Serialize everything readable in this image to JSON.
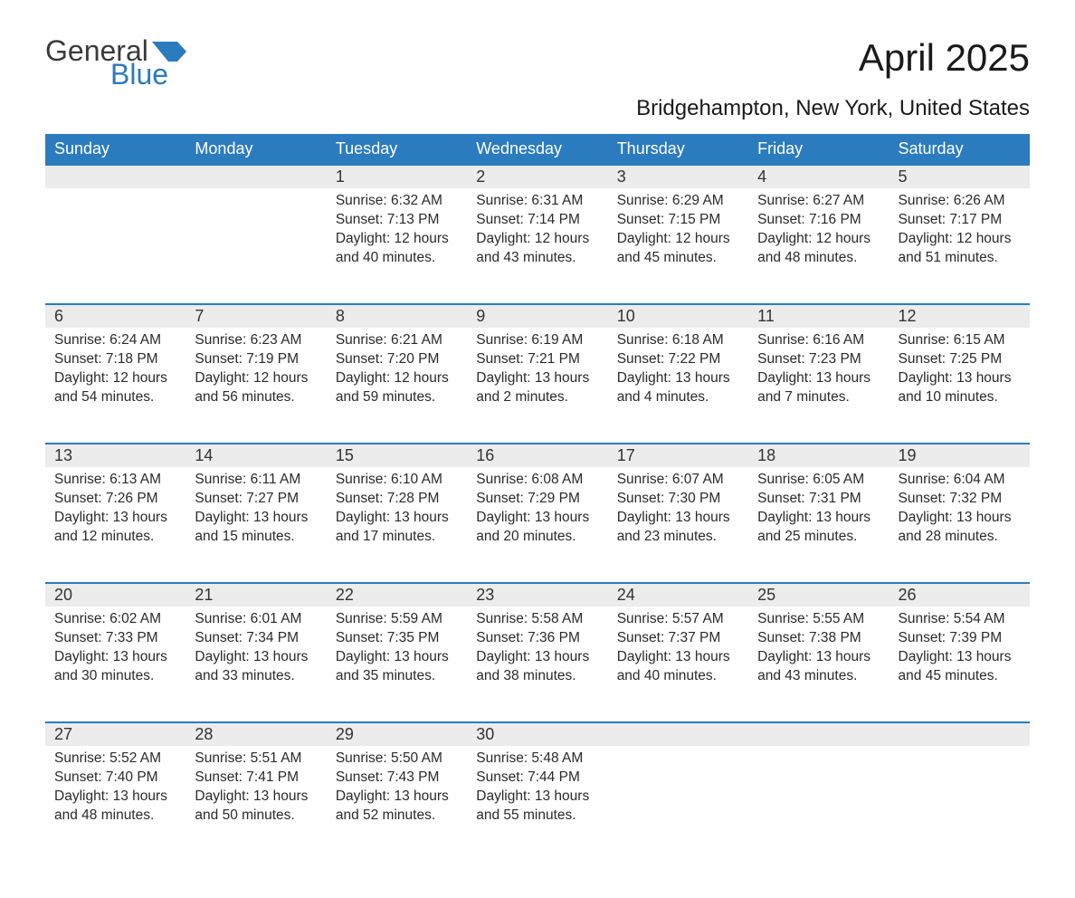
{
  "brand": {
    "general": "General",
    "blue": "Blue",
    "flag_color": "#2b7bbf"
  },
  "title": "April 2025",
  "subtitle": "Bridgehampton, New York, United States",
  "colors": {
    "header_bg": "#2b7bbf",
    "header_text": "#ffffff",
    "daynum_bg": "#ececec",
    "row_divider": "#2b7bbf",
    "text": "#2a2a2a",
    "page_bg": "#ffffff"
  },
  "weekday_labels": [
    "Sunday",
    "Monday",
    "Tuesday",
    "Wednesday",
    "Thursday",
    "Friday",
    "Saturday"
  ],
  "first_weekday_index": 2,
  "days": [
    {
      "n": 1,
      "sunrise": "6:32 AM",
      "sunset": "7:13 PM",
      "daylight": "12 hours and 40 minutes."
    },
    {
      "n": 2,
      "sunrise": "6:31 AM",
      "sunset": "7:14 PM",
      "daylight": "12 hours and 43 minutes."
    },
    {
      "n": 3,
      "sunrise": "6:29 AM",
      "sunset": "7:15 PM",
      "daylight": "12 hours and 45 minutes."
    },
    {
      "n": 4,
      "sunrise": "6:27 AM",
      "sunset": "7:16 PM",
      "daylight": "12 hours and 48 minutes."
    },
    {
      "n": 5,
      "sunrise": "6:26 AM",
      "sunset": "7:17 PM",
      "daylight": "12 hours and 51 minutes."
    },
    {
      "n": 6,
      "sunrise": "6:24 AM",
      "sunset": "7:18 PM",
      "daylight": "12 hours and 54 minutes."
    },
    {
      "n": 7,
      "sunrise": "6:23 AM",
      "sunset": "7:19 PM",
      "daylight": "12 hours and 56 minutes."
    },
    {
      "n": 8,
      "sunrise": "6:21 AM",
      "sunset": "7:20 PM",
      "daylight": "12 hours and 59 minutes."
    },
    {
      "n": 9,
      "sunrise": "6:19 AM",
      "sunset": "7:21 PM",
      "daylight": "13 hours and 2 minutes."
    },
    {
      "n": 10,
      "sunrise": "6:18 AM",
      "sunset": "7:22 PM",
      "daylight": "13 hours and 4 minutes."
    },
    {
      "n": 11,
      "sunrise": "6:16 AM",
      "sunset": "7:23 PM",
      "daylight": "13 hours and 7 minutes."
    },
    {
      "n": 12,
      "sunrise": "6:15 AM",
      "sunset": "7:25 PM",
      "daylight": "13 hours and 10 minutes."
    },
    {
      "n": 13,
      "sunrise": "6:13 AM",
      "sunset": "7:26 PM",
      "daylight": "13 hours and 12 minutes."
    },
    {
      "n": 14,
      "sunrise": "6:11 AM",
      "sunset": "7:27 PM",
      "daylight": "13 hours and 15 minutes."
    },
    {
      "n": 15,
      "sunrise": "6:10 AM",
      "sunset": "7:28 PM",
      "daylight": "13 hours and 17 minutes."
    },
    {
      "n": 16,
      "sunrise": "6:08 AM",
      "sunset": "7:29 PM",
      "daylight": "13 hours and 20 minutes."
    },
    {
      "n": 17,
      "sunrise": "6:07 AM",
      "sunset": "7:30 PM",
      "daylight": "13 hours and 23 minutes."
    },
    {
      "n": 18,
      "sunrise": "6:05 AM",
      "sunset": "7:31 PM",
      "daylight": "13 hours and 25 minutes."
    },
    {
      "n": 19,
      "sunrise": "6:04 AM",
      "sunset": "7:32 PM",
      "daylight": "13 hours and 28 minutes."
    },
    {
      "n": 20,
      "sunrise": "6:02 AM",
      "sunset": "7:33 PM",
      "daylight": "13 hours and 30 minutes."
    },
    {
      "n": 21,
      "sunrise": "6:01 AM",
      "sunset": "7:34 PM",
      "daylight": "13 hours and 33 minutes."
    },
    {
      "n": 22,
      "sunrise": "5:59 AM",
      "sunset": "7:35 PM",
      "daylight": "13 hours and 35 minutes."
    },
    {
      "n": 23,
      "sunrise": "5:58 AM",
      "sunset": "7:36 PM",
      "daylight": "13 hours and 38 minutes."
    },
    {
      "n": 24,
      "sunrise": "5:57 AM",
      "sunset": "7:37 PM",
      "daylight": "13 hours and 40 minutes."
    },
    {
      "n": 25,
      "sunrise": "5:55 AM",
      "sunset": "7:38 PM",
      "daylight": "13 hours and 43 minutes."
    },
    {
      "n": 26,
      "sunrise": "5:54 AM",
      "sunset": "7:39 PM",
      "daylight": "13 hours and 45 minutes."
    },
    {
      "n": 27,
      "sunrise": "5:52 AM",
      "sunset": "7:40 PM",
      "daylight": "13 hours and 48 minutes."
    },
    {
      "n": 28,
      "sunrise": "5:51 AM",
      "sunset": "7:41 PM",
      "daylight": "13 hours and 50 minutes."
    },
    {
      "n": 29,
      "sunrise": "5:50 AM",
      "sunset": "7:43 PM",
      "daylight": "13 hours and 52 minutes."
    },
    {
      "n": 30,
      "sunrise": "5:48 AM",
      "sunset": "7:44 PM",
      "daylight": "13 hours and 55 minutes."
    }
  ],
  "labels": {
    "sunrise": "Sunrise:",
    "sunset": "Sunset:",
    "daylight": "Daylight:"
  }
}
